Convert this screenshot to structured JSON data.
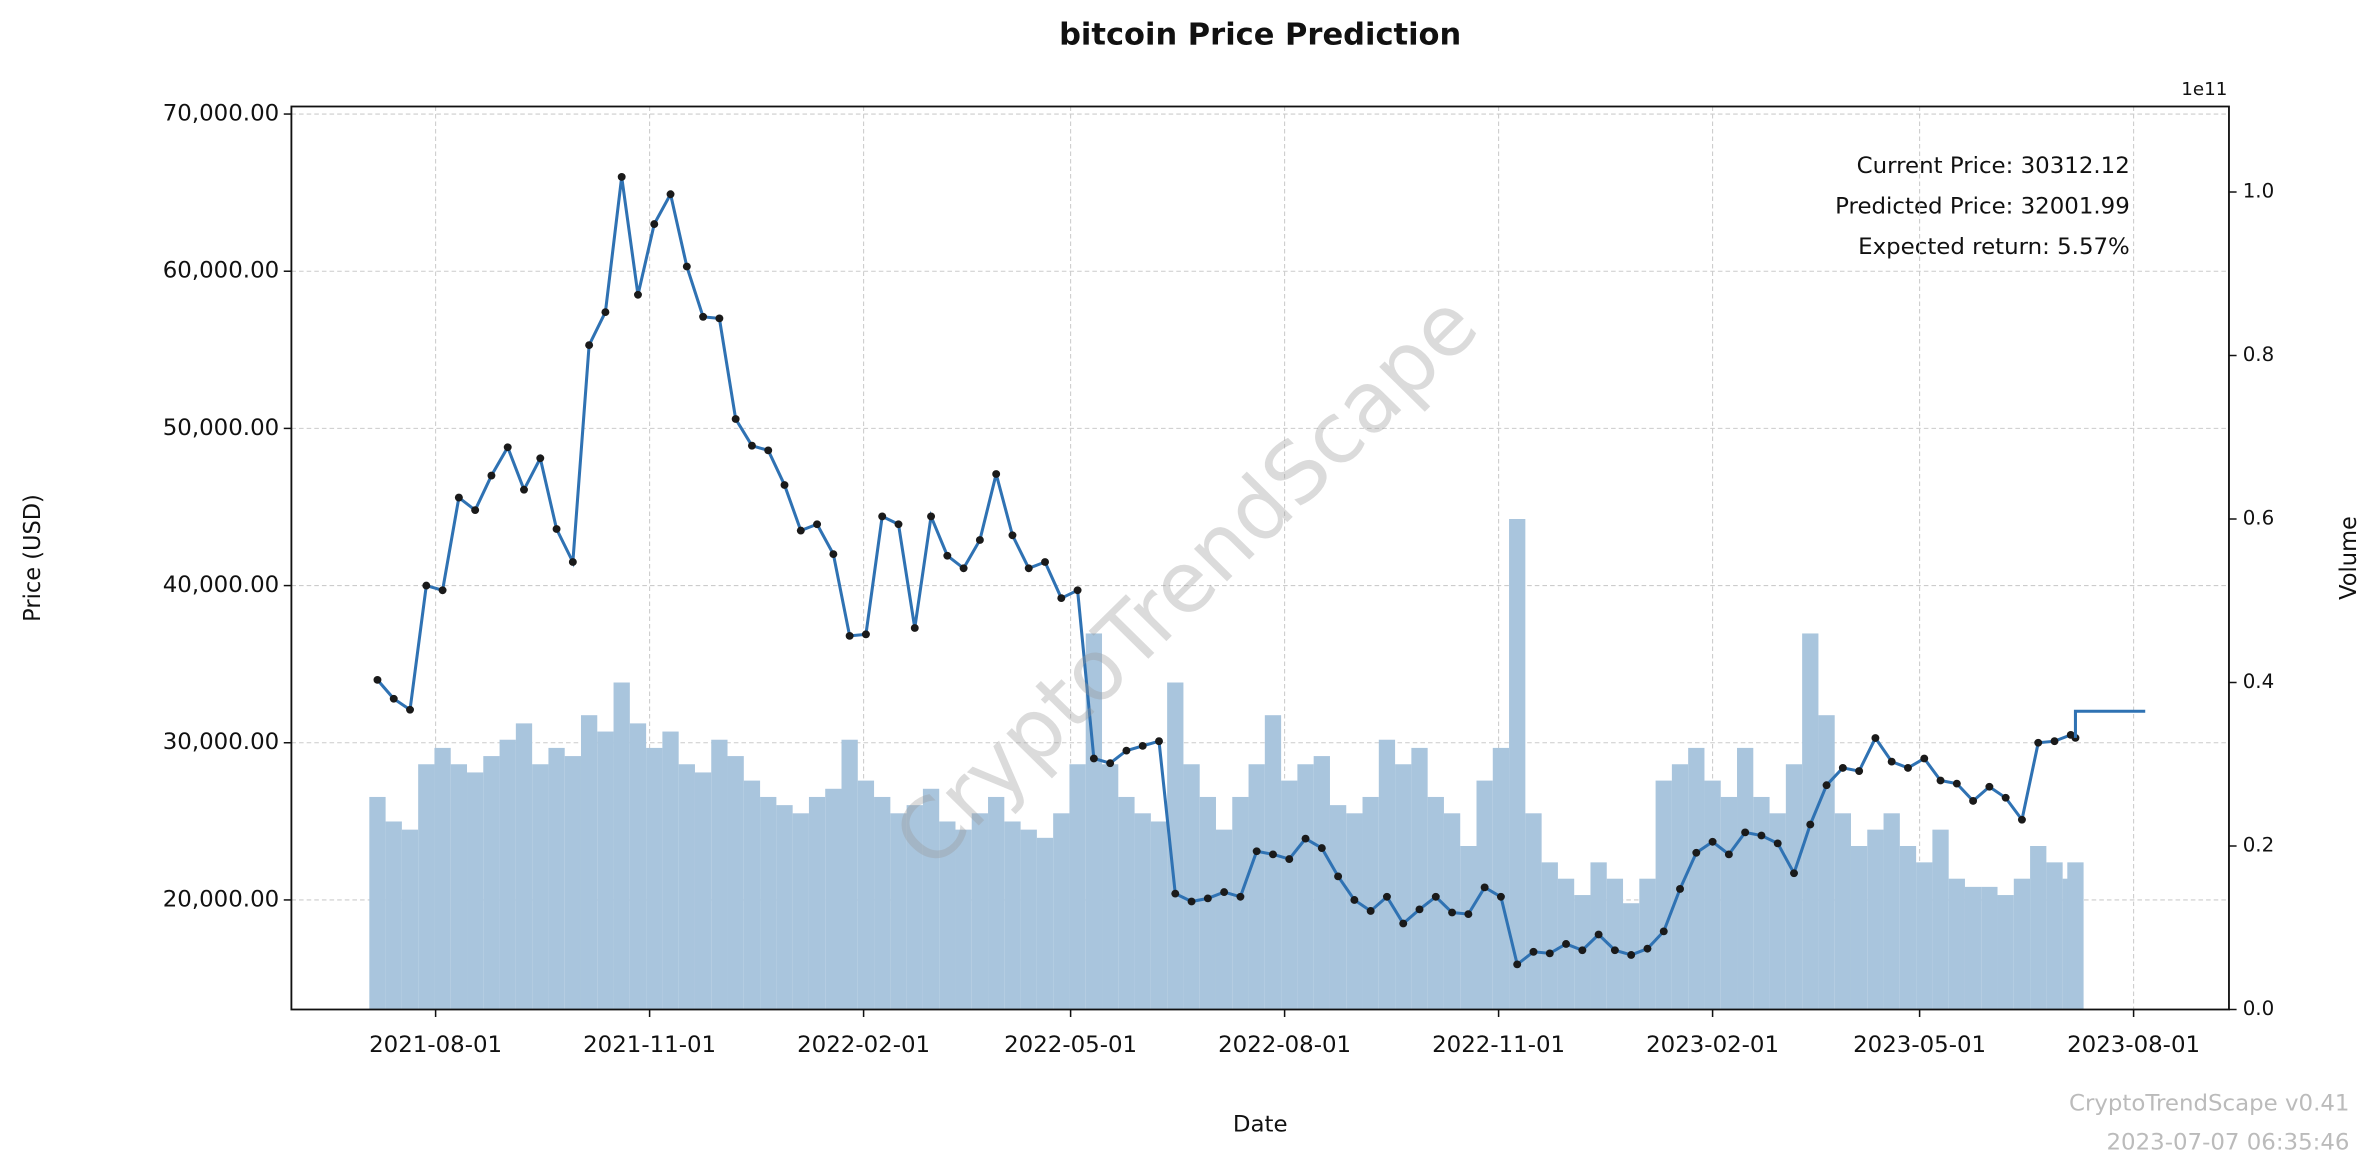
{
  "chart_data": {
    "type": "line",
    "title": "bitcoin Price Prediction",
    "x_label": "Date",
    "y_label": "Price (USD)",
    "y2_label": "Volume",
    "y2_offset_label": "1e11",
    "watermark": "CryptoTrendScape",
    "footer": [
      "CryptoTrendScape v0.41",
      "2023-07-07 06:35:46"
    ],
    "annotations": [
      "Current Price: 30312.12",
      "Predicted Price: 32001.99",
      "Expected return: 5.57%"
    ],
    "grid": true,
    "xlim": [
      "2021-05-31",
      "2023-09-11"
    ],
    "xticks": [
      "2021-08-01",
      "2021-11-01",
      "2022-02-01",
      "2022-05-01",
      "2022-08-01",
      "2022-11-01",
      "2023-02-01",
      "2023-05-01",
      "2023-08-01"
    ],
    "ylim": [
      13030,
      70480
    ],
    "yticks": [
      {
        "value": 20000,
        "label": "20,000.00"
      },
      {
        "value": 30000,
        "label": "30,000.00"
      },
      {
        "value": 40000,
        "label": "40,000.00"
      },
      {
        "value": 50000,
        "label": "50,000.00"
      },
      {
        "value": 60000,
        "label": "60,000.00"
      },
      {
        "value": 70000,
        "label": "70,000.00"
      }
    ],
    "y2lim": [
      0,
      110460000000.0
    ],
    "y2ticks": [
      {
        "value": 0,
        "label": "0.0"
      },
      {
        "value": 20000000000.0,
        "label": "0.2"
      },
      {
        "value": 40000000000.0,
        "label": "0.4"
      },
      {
        "value": 60000000000.0,
        "label": "0.6"
      },
      {
        "value": 80000000000.0,
        "label": "0.8"
      },
      {
        "value": 100000000000.0,
        "label": "1.0"
      }
    ],
    "dates": [
      "2021-07-07",
      "2021-07-14",
      "2021-07-21",
      "2021-07-28",
      "2021-08-04",
      "2021-08-11",
      "2021-08-18",
      "2021-08-25",
      "2021-09-01",
      "2021-09-08",
      "2021-09-15",
      "2021-09-22",
      "2021-09-29",
      "2021-10-06",
      "2021-10-13",
      "2021-10-20",
      "2021-10-27",
      "2021-11-03",
      "2021-11-10",
      "2021-11-17",
      "2021-11-24",
      "2021-12-01",
      "2021-12-08",
      "2021-12-15",
      "2021-12-22",
      "2021-12-29",
      "2022-01-05",
      "2022-01-12",
      "2022-01-19",
      "2022-01-26",
      "2022-02-02",
      "2022-02-09",
      "2022-02-16",
      "2022-02-23",
      "2022-03-02",
      "2022-03-09",
      "2022-03-16",
      "2022-03-23",
      "2022-03-30",
      "2022-04-06",
      "2022-04-13",
      "2022-04-20",
      "2022-04-27",
      "2022-05-04",
      "2022-05-11",
      "2022-05-18",
      "2022-05-25",
      "2022-06-01",
      "2022-06-08",
      "2022-06-15",
      "2022-06-22",
      "2022-06-29",
      "2022-07-06",
      "2022-07-13",
      "2022-07-20",
      "2022-07-27",
      "2022-08-03",
      "2022-08-10",
      "2022-08-17",
      "2022-08-24",
      "2022-08-31",
      "2022-09-07",
      "2022-09-14",
      "2022-09-21",
      "2022-09-28",
      "2022-10-05",
      "2022-10-12",
      "2022-10-19",
      "2022-10-26",
      "2022-11-02",
      "2022-11-09",
      "2022-11-16",
      "2022-11-23",
      "2022-11-30",
      "2022-12-07",
      "2022-12-14",
      "2022-12-21",
      "2022-12-28",
      "2023-01-04",
      "2023-01-11",
      "2023-01-18",
      "2023-01-25",
      "2023-02-01",
      "2023-02-08",
      "2023-02-15",
      "2023-02-22",
      "2023-03-01",
      "2023-03-08",
      "2023-03-15",
      "2023-03-22",
      "2023-03-29",
      "2023-04-05",
      "2023-04-12",
      "2023-04-19",
      "2023-04-26",
      "2023-05-03",
      "2023-05-10",
      "2023-05-17",
      "2023-05-24",
      "2023-05-31",
      "2023-06-07",
      "2023-06-14",
      "2023-06-21",
      "2023-06-28",
      "2023-07-05",
      "2023-07-07"
    ],
    "series": [
      {
        "type": "bar",
        "axis": "y2",
        "color": "#a9c5dd",
        "values": [
          26000000000.0,
          23000000000.0,
          22000000000.0,
          30000000000.0,
          32000000000.0,
          30000000000.0,
          29000000000.0,
          31000000000.0,
          33000000000.0,
          35000000000.0,
          30000000000.0,
          32000000000.0,
          31000000000.0,
          36000000000.0,
          34000000000.0,
          40000000000.0,
          35000000000.0,
          32000000000.0,
          34000000000.0,
          30000000000.0,
          29000000000.0,
          33000000000.0,
          31000000000.0,
          28000000000.0,
          26000000000.0,
          25000000000.0,
          24000000000.0,
          26000000000.0,
          27000000000.0,
          33000000000.0,
          28000000000.0,
          26000000000.0,
          24000000000.0,
          25000000000.0,
          27000000000.0,
          23000000000.0,
          22000000000.0,
          24000000000.0,
          26000000000.0,
          23000000000.0,
          22000000000.0,
          21000000000.0,
          24000000000.0,
          30000000000.0,
          46000000000.0,
          30000000000.0,
          26000000000.0,
          24000000000.0,
          23000000000.0,
          40000000000.0,
          30000000000.0,
          26000000000.0,
          22000000000.0,
          26000000000.0,
          30000000000.0,
          36000000000.0,
          28000000000.0,
          30000000000.0,
          31000000000.0,
          25000000000.0,
          24000000000.0,
          26000000000.0,
          33000000000.0,
          30000000000.0,
          32000000000.0,
          26000000000.0,
          24000000000.0,
          20000000000.0,
          28000000000.0,
          32000000000.0,
          60000000000.0,
          24000000000.0,
          18000000000.0,
          16000000000.0,
          14000000000.0,
          18000000000.0,
          16000000000.0,
          13000000000.0,
          16000000000.0,
          28000000000.0,
          30000000000.0,
          32000000000.0,
          28000000000.0,
          26000000000.0,
          32000000000.0,
          26000000000.0,
          24000000000.0,
          30000000000.0,
          46000000000.0,
          36000000000.0,
          24000000000.0,
          20000000000.0,
          22000000000.0,
          24000000000.0,
          20000000000.0,
          18000000000.0,
          22000000000.0,
          16000000000.0,
          15000000000.0,
          15000000000.0,
          14000000000.0,
          16000000000.0,
          20000000000.0,
          18000000000.0,
          16000000000.0,
          18000000000.0
        ]
      },
      {
        "type": "line",
        "color": "#2f72b3",
        "marker_color": "#1a1a1a",
        "values": [
          34000,
          32800,
          32100,
          40000,
          39700,
          45600,
          44800,
          47000,
          48800,
          46100,
          48100,
          43600,
          41500,
          55300,
          57400,
          66000,
          58500,
          63000,
          64900,
          60300,
          57100,
          57000,
          50600,
          48900,
          48600,
          46400,
          43500,
          43900,
          42000,
          36800,
          36900,
          44400,
          43900,
          37300,
          44400,
          41900,
          41100,
          42900,
          47100,
          43200,
          41100,
          41500,
          39200,
          39700,
          29000,
          28700,
          29500,
          29800,
          30100,
          20400,
          19900,
          20100,
          20500,
          20200,
          23100,
          22900,
          22600,
          23900,
          23300,
          21500,
          20000,
          19300,
          20200,
          18500,
          19400,
          20200,
          19200,
          19100,
          20800,
          20200,
          15900,
          16700,
          16600,
          17200,
          16800,
          17800,
          16800,
          16500,
          16900,
          18000,
          20700,
          23000,
          23700,
          22900,
          24300,
          24100,
          23600,
          21700,
          24800,
          27300,
          28400,
          28200,
          30300,
          28800,
          28400,
          29000,
          27600,
          27400,
          26300,
          27200,
          26500,
          25100,
          30000,
          30100,
          30500,
          30312.12
        ]
      },
      {
        "type": "line",
        "color": "#2f72b3",
        "x": [
          "2023-07-07",
          "2023-07-07",
          "2023-08-06"
        ],
        "values": [
          30312.12,
          32001.99,
          32001.99
        ]
      }
    ]
  }
}
